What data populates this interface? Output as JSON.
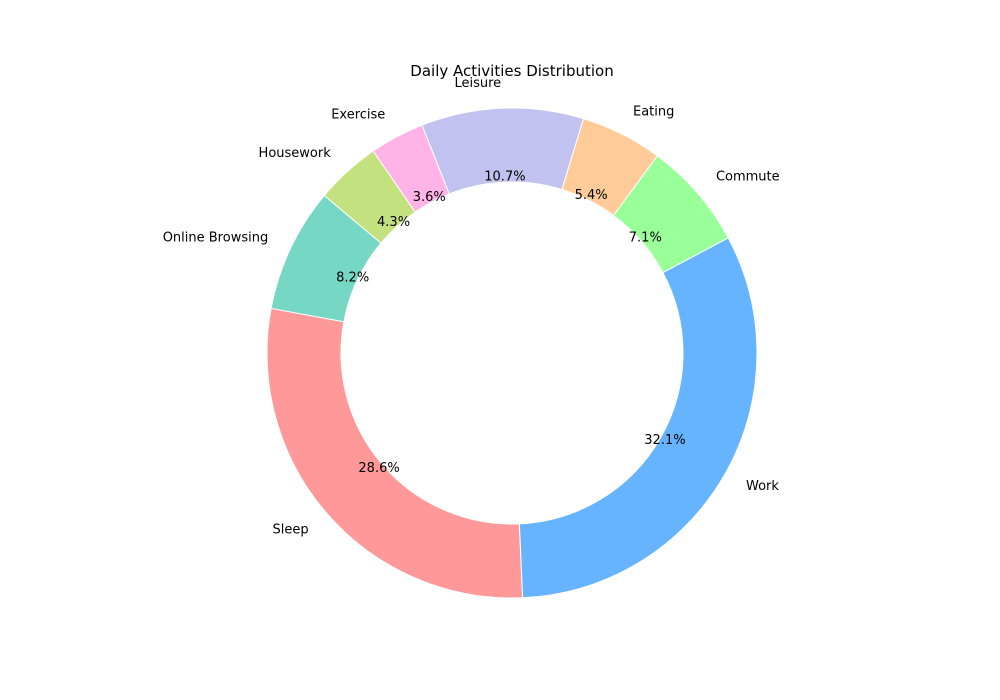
{
  "chart_data": {
    "type": "pie",
    "subtype": "donut",
    "title": "Daily Activities Distribution",
    "start_angle_deg": 140,
    "direction": "counterclockwise",
    "slices": [
      {
        "label": "Online Browsing",
        "value": 8.2,
        "pct_label": "8.2%",
        "color": "#76d7c4"
      },
      {
        "label": "Sleep",
        "value": 28.6,
        "pct_label": "28.6%",
        "color": "#ff9999"
      },
      {
        "label": "Work",
        "value": 32.1,
        "pct_label": "32.1%",
        "color": "#66b3ff"
      },
      {
        "label": "Commute",
        "value": 7.1,
        "pct_label": "7.1%",
        "color": "#99ff99"
      },
      {
        "label": "Eating",
        "value": 5.4,
        "pct_label": "5.4%",
        "color": "#ffcc99"
      },
      {
        "label": "Leisure",
        "value": 10.7,
        "pct_label": "10.7%",
        "color": "#c2c2f0"
      },
      {
        "label": "Exercise",
        "value": 3.6,
        "pct_label": "3.6%",
        "color": "#ffb3e6"
      },
      {
        "label": "Housework",
        "value": 4.3,
        "pct_label": "4.3%",
        "color": "#c4e17f"
      }
    ]
  }
}
